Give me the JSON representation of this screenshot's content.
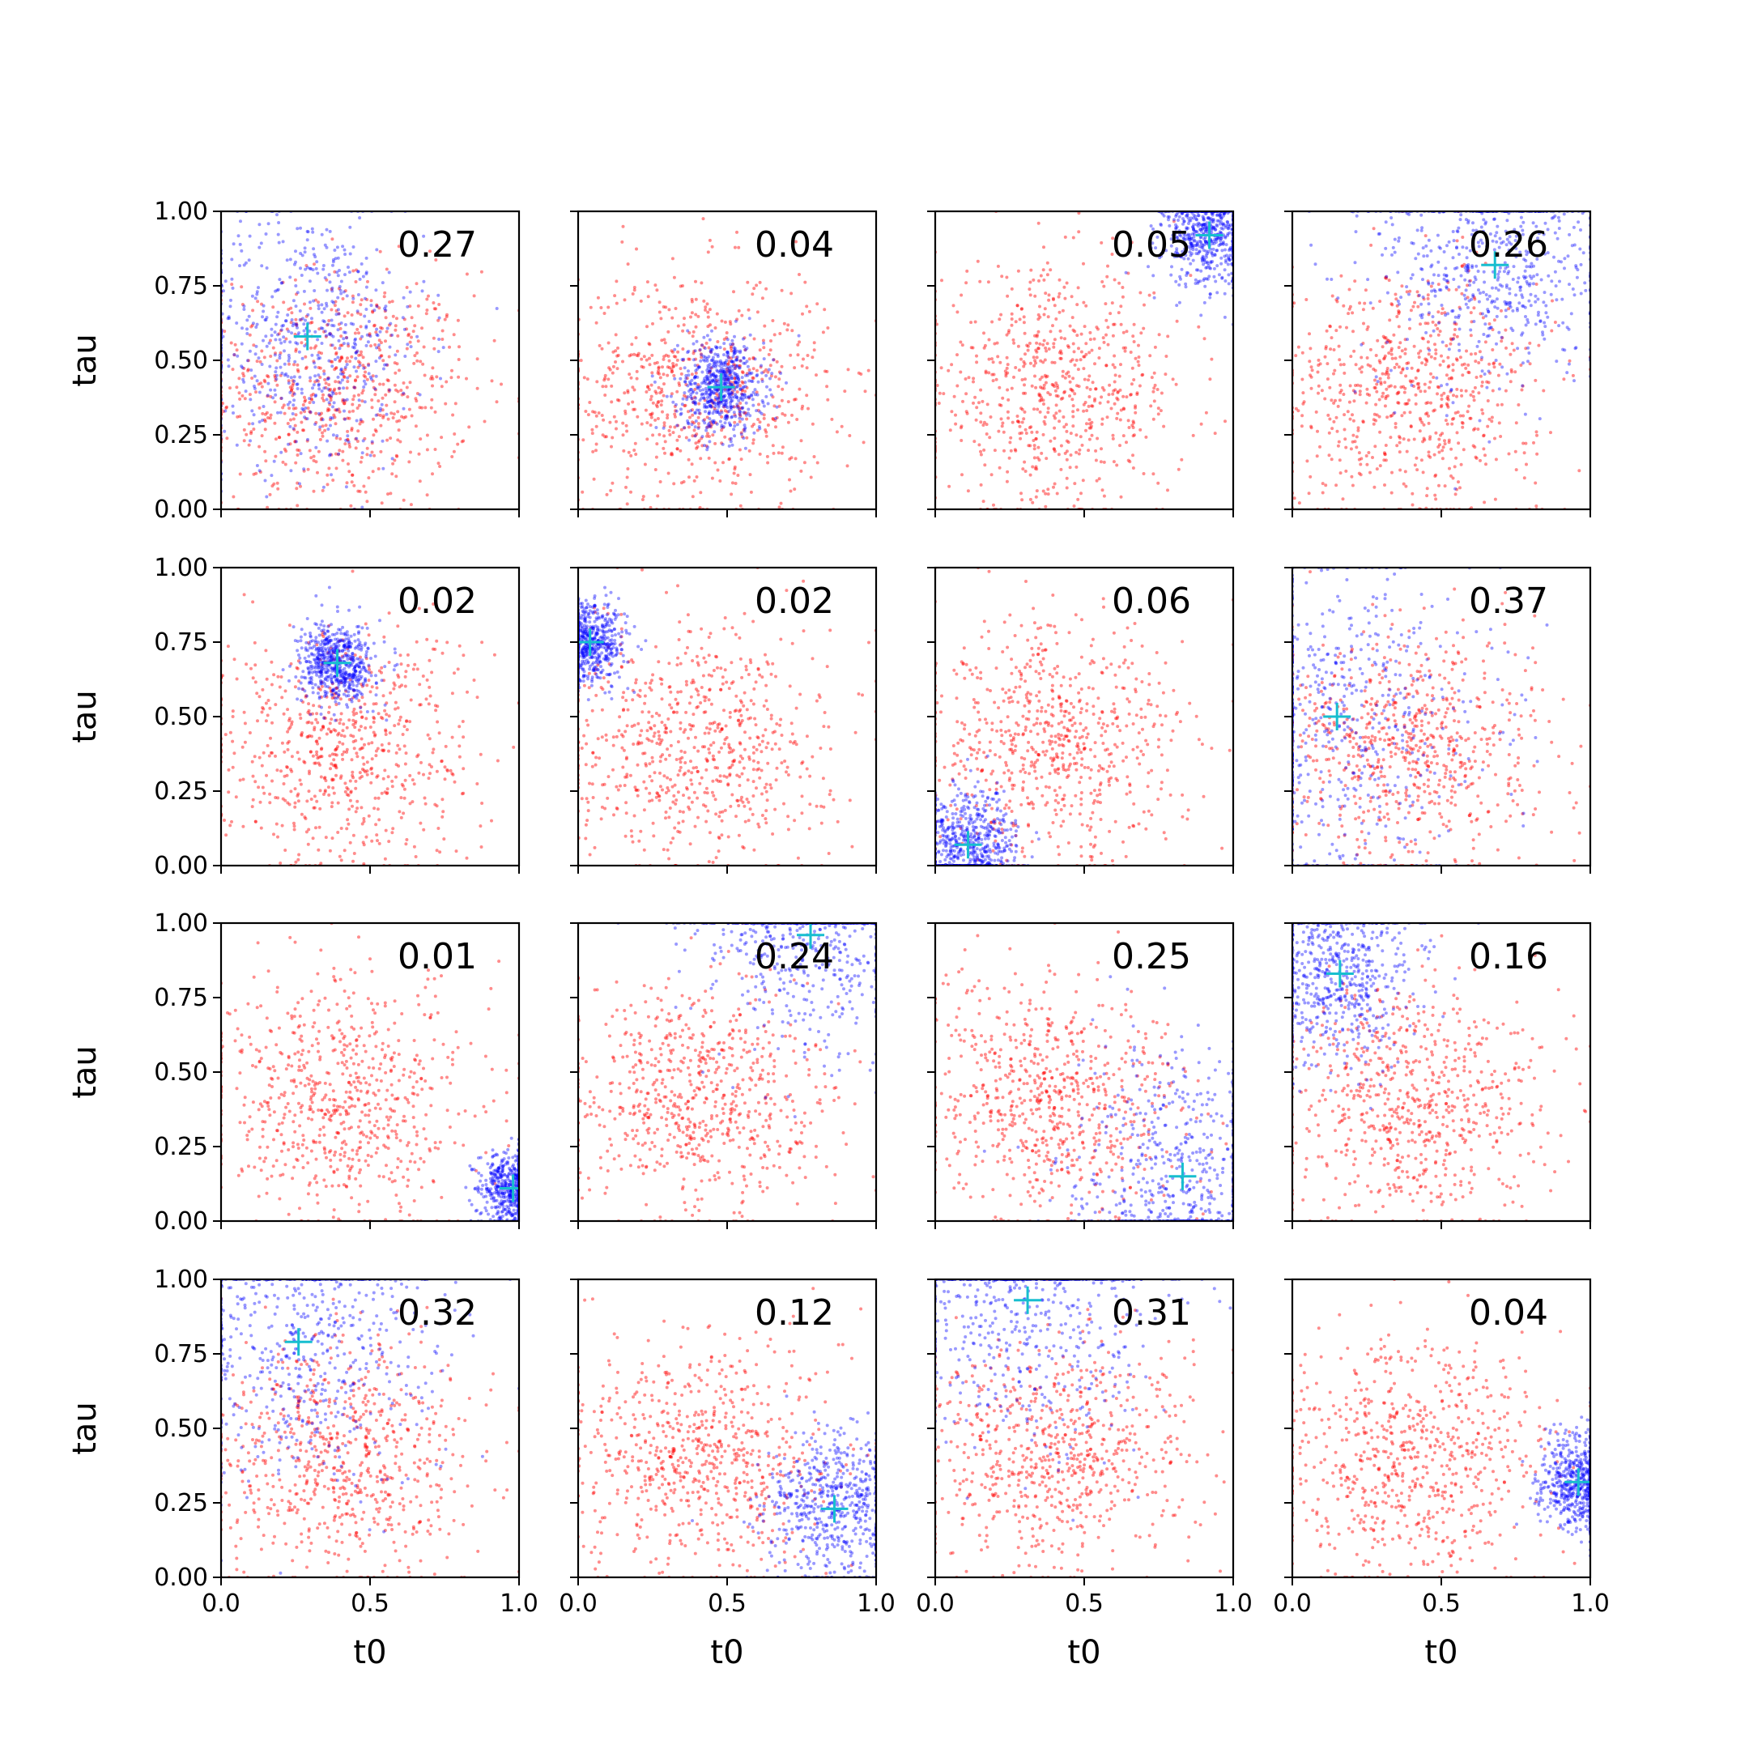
{
  "chart_data": {
    "type": "scatter",
    "layout": "4x4 grid of subplots",
    "shared_axes": true,
    "xlabel": "t0",
    "ylabel": "tau",
    "xlim": [
      0,
      1
    ],
    "ylim": [
      0,
      1
    ],
    "x_ticks": [
      "0.0",
      "0.5",
      "1.0"
    ],
    "y_ticks": [
      "0.00",
      "0.25",
      "0.50",
      "0.75",
      "1.00"
    ],
    "grid": false,
    "legend": "none",
    "colors": {
      "prior_points": "#ff0000",
      "posterior_points": "#0000ff",
      "true_value_marker": "#17becf"
    },
    "panels": [
      {
        "annotation": "0.27",
        "true_value": [
          0.29,
          0.58
        ]
      },
      {
        "annotation": "0.04",
        "true_value": [
          0.48,
          0.41
        ]
      },
      {
        "annotation": "0.05",
        "true_value": [
          0.92,
          0.92
        ]
      },
      {
        "annotation": "0.26",
        "true_value": [
          0.68,
          0.82
        ]
      },
      {
        "annotation": "0.02",
        "true_value": [
          0.39,
          0.68
        ]
      },
      {
        "annotation": "0.02",
        "true_value": [
          0.04,
          0.75
        ]
      },
      {
        "annotation": "0.06",
        "true_value": [
          0.11,
          0.07
        ]
      },
      {
        "annotation": "0.37",
        "true_value": [
          0.15,
          0.5
        ]
      },
      {
        "annotation": "0.01",
        "true_value": [
          0.98,
          0.11
        ]
      },
      {
        "annotation": "0.24",
        "true_value": [
          0.78,
          0.96
        ]
      },
      {
        "annotation": "0.25",
        "true_value": [
          0.83,
          0.15
        ]
      },
      {
        "annotation": "0.16",
        "true_value": [
          0.16,
          0.83
        ]
      },
      {
        "annotation": "0.32",
        "true_value": [
          0.26,
          0.79
        ]
      },
      {
        "annotation": "0.12",
        "true_value": [
          0.86,
          0.23
        ]
      },
      {
        "annotation": "0.31",
        "true_value": [
          0.31,
          0.93
        ]
      },
      {
        "annotation": "0.04",
        "true_value": [
          0.96,
          0.32
        ]
      }
    ]
  }
}
